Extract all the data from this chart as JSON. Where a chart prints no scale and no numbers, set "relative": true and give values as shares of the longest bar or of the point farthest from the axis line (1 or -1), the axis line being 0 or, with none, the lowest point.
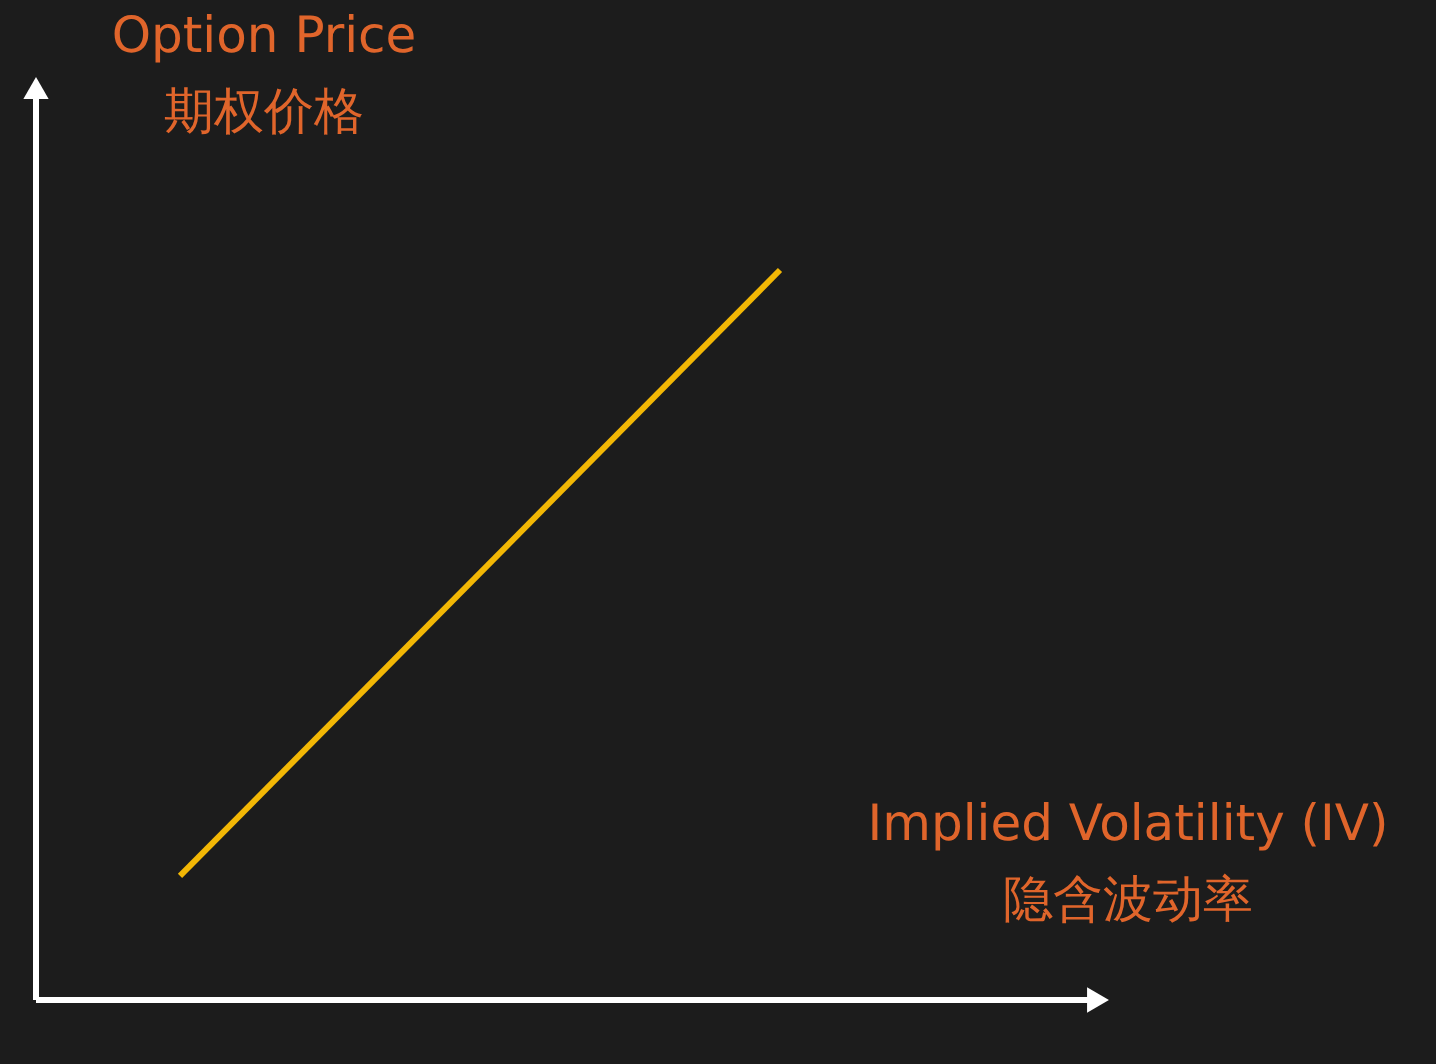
{
  "chart_data": {
    "type": "line",
    "relative": true,
    "xlabel": "Implied Volatility (IV)\n隐含波动率",
    "ylabel": "Option Price\n期权价格",
    "categories": [
      null,
      null
    ],
    "series": [
      {
        "color": "#f2b705",
        "values": [
          0.17,
          1
        ]
      }
    ]
  }
}
